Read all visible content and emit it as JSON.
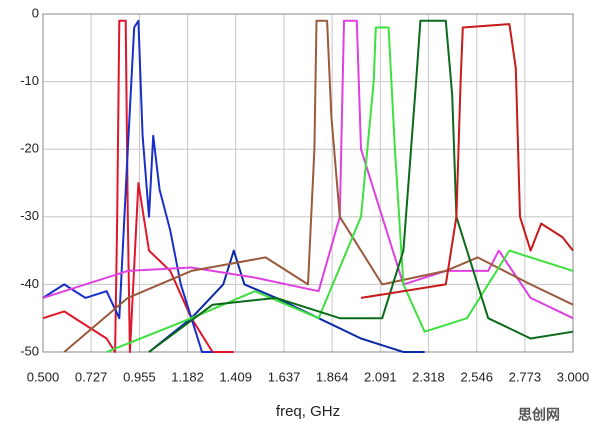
{
  "chart_data": {
    "type": "line",
    "x_label": "freq, GHz",
    "watermark": "思创网",
    "xlim": [
      0.5,
      3.0
    ],
    "xticks": [
      {
        "value": 0.5,
        "label": "0.500"
      },
      {
        "value": 0.727,
        "label": "0.727"
      },
      {
        "value": 0.955,
        "label": "0.955"
      },
      {
        "value": 1.182,
        "label": "1.182"
      },
      {
        "value": 1.409,
        "label": "1.409"
      },
      {
        "value": 1.637,
        "label": "1.637"
      },
      {
        "value": 1.864,
        "label": "1.864"
      },
      {
        "value": 2.091,
        "label": "2.091"
      },
      {
        "value": 2.318,
        "label": "2.318"
      },
      {
        "value": 2.546,
        "label": "2.546"
      },
      {
        "value": 2.773,
        "label": "2.773"
      },
      {
        "value": 3.0,
        "label": "3.000"
      }
    ],
    "ylim": [
      -50,
      0
    ],
    "yticks": [
      0,
      -10,
      -20,
      -30,
      -40,
      -50
    ],
    "grid": true,
    "series": [
      {
        "color": "#e0162b",
        "x": [
          0.5,
          0.6,
          0.7,
          0.8,
          0.84,
          0.85,
          0.86,
          0.89,
          0.9,
          0.91,
          0.95,
          1.0,
          1.1,
          1.2,
          1.3,
          1.4
        ],
        "values": [
          -45,
          -44,
          -46,
          -48,
          -50,
          -30,
          -1,
          -1,
          -30,
          -50,
          -25,
          -35,
          -38,
          -45,
          -50,
          -50
        ]
      },
      {
        "color": "#1a2fc8",
        "x": [
          0.5,
          0.6,
          0.7,
          0.8,
          0.86,
          0.9,
          0.93,
          0.95,
          0.97,
          1.0,
          1.02,
          1.05,
          1.1,
          1.15,
          1.2,
          1.25,
          1.3
        ],
        "values": [
          -42,
          -40,
          -42,
          -41,
          -45,
          -20,
          -2,
          -1,
          -18,
          -30,
          -18,
          -26,
          -32,
          -40,
          -45,
          -50,
          -50
        ]
      },
      {
        "color": "#0a2aa8",
        "x": [
          1.0,
          1.2,
          1.35,
          1.4,
          1.45,
          1.6,
          1.8,
          2.0,
          2.2,
          2.3
        ],
        "values": [
          -50,
          -45,
          -40,
          -35,
          -40,
          -42,
          -45,
          -48,
          -50,
          -50
        ]
      },
      {
        "color": "#e040e0",
        "x": [
          0.5,
          0.9,
          1.2,
          1.5,
          1.8,
          1.9,
          1.92,
          1.98,
          2.0,
          2.2,
          2.4,
          2.6,
          2.65,
          2.8,
          3.0
        ],
        "values": [
          -42,
          -38,
          -37.5,
          -39,
          -41,
          -30,
          -1,
          -1,
          -20,
          -40,
          -38,
          -38,
          -35,
          -42,
          -45
        ]
      },
      {
        "color": "#9a5a3c",
        "x": [
          0.6,
          0.9,
          1.2,
          1.55,
          1.75,
          1.78,
          1.79,
          1.84,
          1.86,
          1.9,
          2.1,
          2.4,
          2.55,
          2.8,
          3.0
        ],
        "values": [
          -50,
          -42,
          -38,
          -36,
          -40,
          -20,
          -1,
          -1,
          -15,
          -30,
          -40,
          -38,
          -36,
          -40,
          -43
        ]
      },
      {
        "color": "#3ee03e",
        "x": [
          0.8,
          1.2,
          1.5,
          1.8,
          2.0,
          2.06,
          2.07,
          2.13,
          2.16,
          2.2,
          2.3,
          2.5,
          2.7,
          3.0
        ],
        "values": [
          -50,
          -45,
          -41,
          -45,
          -30,
          -10,
          -2,
          -2,
          -20,
          -40,
          -47,
          -45,
          -35,
          -38
        ]
      },
      {
        "color": "#0b6a1a",
        "x": [
          1.0,
          1.3,
          1.6,
          1.9,
          2.1,
          2.2,
          2.26,
          2.28,
          2.4,
          2.43,
          2.45,
          2.6,
          2.8,
          3.0
        ],
        "values": [
          -50,
          -43,
          -42,
          -45,
          -45,
          -35,
          -10,
          -1,
          -1,
          -12,
          -30,
          -45,
          -48,
          -47
        ]
      },
      {
        "color": "#c81a1a",
        "x": [
          2.0,
          2.4,
          2.45,
          2.47,
          2.48,
          2.7,
          2.73,
          2.75,
          2.8,
          2.85,
          2.95,
          3.0
        ],
        "values": [
          -42,
          -40,
          -30,
          -10,
          -2,
          -1.5,
          -8,
          -30,
          -35,
          -31,
          -33,
          -35
        ]
      }
    ]
  }
}
